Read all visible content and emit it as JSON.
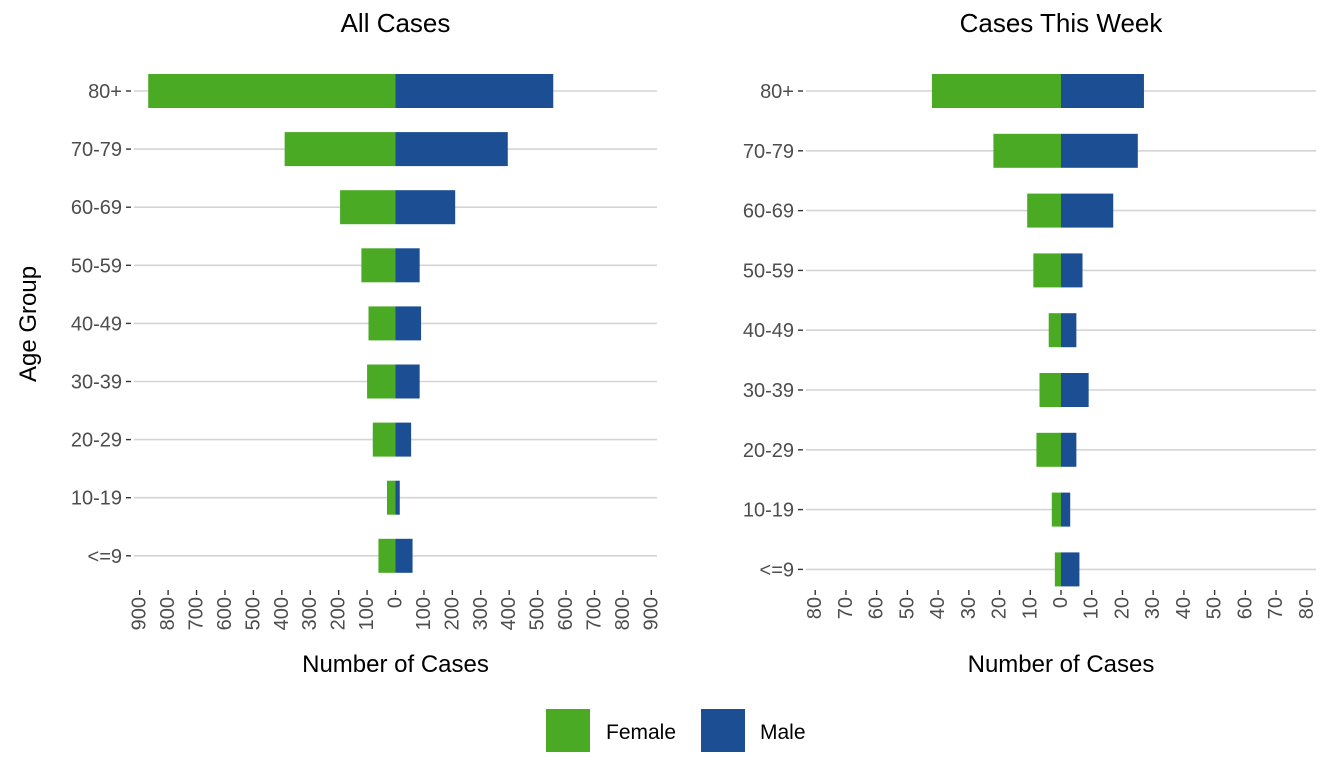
{
  "colors": {
    "female": "#4aaa24",
    "male": "#1b4e93"
  },
  "y_axis_label": "Age Group",
  "x_axis_label": "Number of Cases",
  "legend": [
    {
      "name": "Female",
      "color": "#4aaa24"
    },
    {
      "name": "Male",
      "color": "#1b4e93"
    }
  ],
  "chart_data": [
    {
      "type": "bar",
      "orientation": "horizontal-pyramid",
      "title": "All Cases",
      "xlabel": "Number of Cases",
      "ylabel": "Age Group",
      "categories": [
        "80+",
        "70-79",
        "60-69",
        "50-59",
        "40-49",
        "30-39",
        "20-29",
        "10-19",
        "<=9"
      ],
      "series": [
        {
          "name": "Female",
          "values": [
            870,
            390,
            195,
            120,
            95,
            100,
            80,
            30,
            60
          ]
        },
        {
          "name": "Male",
          "values": [
            555,
            395,
            210,
            85,
            90,
            85,
            55,
            15,
            60
          ]
        }
      ],
      "xlim": [
        -920,
        920
      ],
      "tick_values": [
        -900,
        -800,
        -700,
        -600,
        -500,
        -400,
        -300,
        -200,
        -100,
        0,
        100,
        200,
        300,
        400,
        500,
        600,
        700,
        800,
        900
      ],
      "tick_labels": [
        "900",
        "800",
        "700",
        "600",
        "500",
        "400",
        "300",
        "200",
        "100",
        "0",
        "100",
        "200",
        "300",
        "400",
        "500",
        "600",
        "700",
        "800",
        "900"
      ],
      "grid": "horizontal"
    },
    {
      "type": "bar",
      "orientation": "horizontal-pyramid",
      "title": "Cases This Week",
      "xlabel": "Number of Cases",
      "categories": [
        "80+",
        "70-79",
        "60-69",
        "50-59",
        "40-49",
        "30-39",
        "20-29",
        "10-19",
        "<=9"
      ],
      "series": [
        {
          "name": "Female",
          "values": [
            42,
            22,
            11,
            9,
            4,
            7,
            8,
            3,
            2
          ]
        },
        {
          "name": "Male",
          "values": [
            27,
            25,
            17,
            7,
            5,
            9,
            5,
            3,
            6
          ]
        }
      ],
      "xlim": [
        -83,
        83
      ],
      "tick_values": [
        -80,
        -70,
        -60,
        -50,
        -40,
        -30,
        -20,
        -10,
        0,
        10,
        20,
        30,
        40,
        50,
        60,
        70,
        80
      ],
      "tick_labels": [
        "80",
        "70",
        "60",
        "50",
        "40",
        "30",
        "20",
        "10",
        "0",
        "10",
        "20",
        "30",
        "40",
        "50",
        "60",
        "70",
        "80"
      ],
      "grid": "horizontal"
    }
  ]
}
